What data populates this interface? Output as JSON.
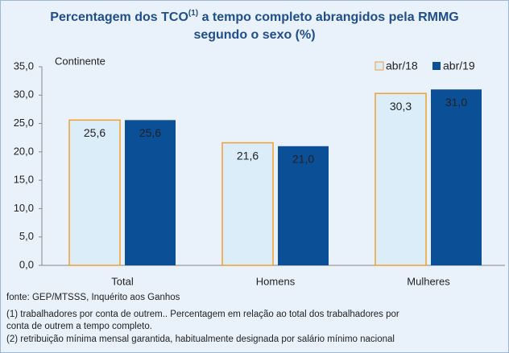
{
  "chart_data": {
    "type": "bar",
    "title_parts": [
      "Percentagem dos TCO",
      "(1)",
      " a tempo completo abrangidos pela RMMG",
      "segundo o sexo (%)"
    ],
    "annotation": "Continente",
    "categories": [
      "Total",
      "Homens",
      "Mulheres"
    ],
    "series": [
      {
        "name": "abr/18",
        "color": "#dcedfa",
        "border": "#f0a033",
        "values": [
          25.6,
          21.6,
          30.3
        ],
        "value_labels": [
          "25,6",
          "21,6",
          "30,3"
        ]
      },
      {
        "name": "abr/19",
        "color": "#0b4f97",
        "values": [
          25.6,
          21.0,
          31.0
        ],
        "value_labels": [
          "25,6",
          "21,0",
          "31,0"
        ]
      }
    ],
    "ylim": [
      0,
      35
    ],
    "yticks": [
      {
        "value": 0,
        "label": "0,0"
      },
      {
        "value": 5,
        "label": "5,0"
      },
      {
        "value": 10,
        "label": "10,0"
      },
      {
        "value": 15,
        "label": "15,0"
      },
      {
        "value": 20,
        "label": "20,0"
      },
      {
        "value": 25,
        "label": "25,0"
      },
      {
        "value": 30,
        "label": "30,0"
      },
      {
        "value": 35,
        "label": "35,0"
      }
    ],
    "legend": "top-right",
    "notes": [
      "fonte: GEP/MTSSS, Inquérito aos Ganhos",
      "(1) trabalhadores por conta de outrem.. Percentagem em relação ao total dos trabalhadores por",
      "conta de outrem a tempo completo.",
      "(2) retribuição mínima mensal garantida, habitualmente designada por salário mínimo nacional"
    ]
  }
}
